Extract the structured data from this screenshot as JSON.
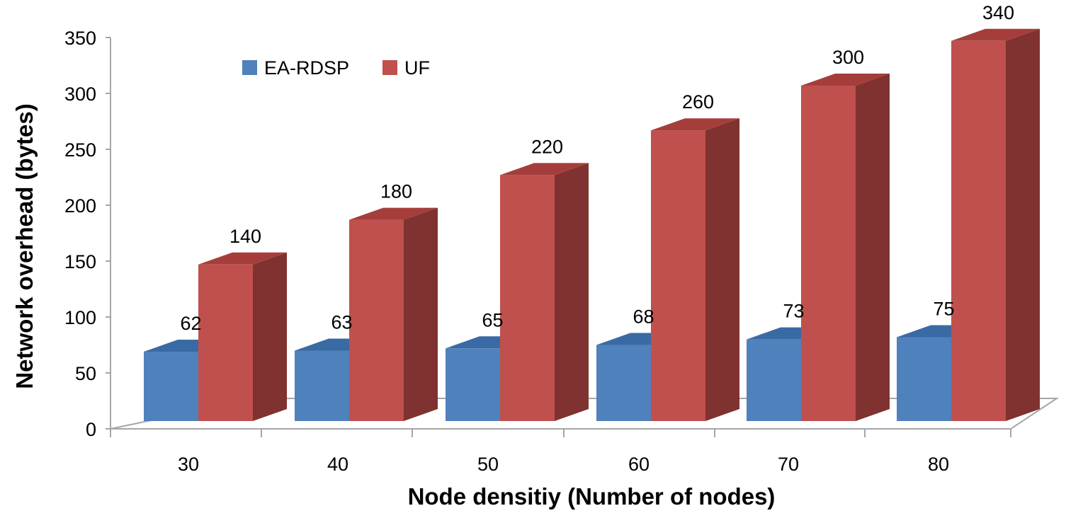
{
  "chart_data": {
    "type": "bar",
    "title": "",
    "xlabel": "Node densitiy (Number of nodes)",
    "ylabel": "Network  overhead (bytes)",
    "categories": [
      "30",
      "40",
      "50",
      "60",
      "70",
      "80"
    ],
    "series": [
      {
        "name": "EA-RDSP",
        "values": [
          62,
          63,
          65,
          68,
          73,
          75
        ],
        "color": "#4f81bd",
        "top_color": "#3a6aa3",
        "side_color": "#2f5583"
      },
      {
        "name": "UF",
        "values": [
          140,
          180,
          220,
          260,
          300,
          340
        ],
        "color": "#c0504d",
        "top_color": "#a53e3b",
        "side_color": "#7f3230"
      }
    ],
    "ylim": [
      0,
      350
    ],
    "yticks": [
      "0",
      "50",
      "100",
      "150",
      "200",
      "250",
      "300",
      "350"
    ],
    "legend_position": "top-left",
    "grid": false,
    "style": "3d-clustered"
  }
}
